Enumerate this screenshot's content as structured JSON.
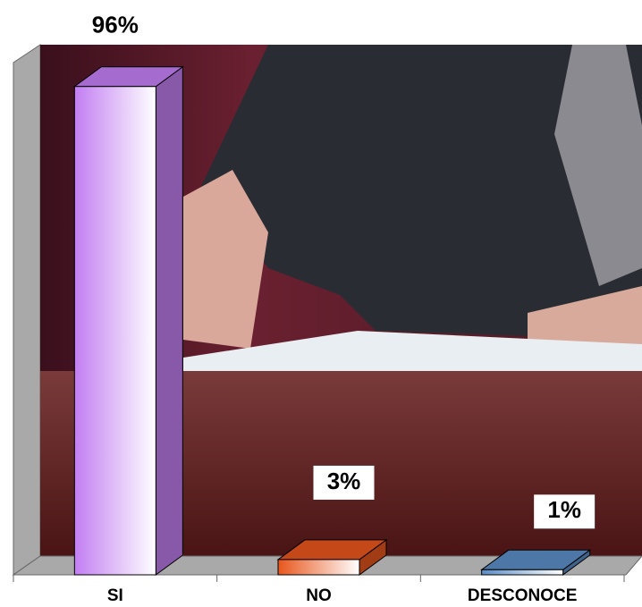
{
  "chart_data": {
    "type": "bar3d",
    "categories": [
      "SI",
      "NO",
      "DESCONOCE"
    ],
    "values": [
      96,
      3,
      1
    ],
    "value_labels": [
      "96%",
      "3%",
      "1%"
    ],
    "colors": [
      "#c27ef2",
      "#e8561c",
      "#5b8cc4"
    ]
  }
}
